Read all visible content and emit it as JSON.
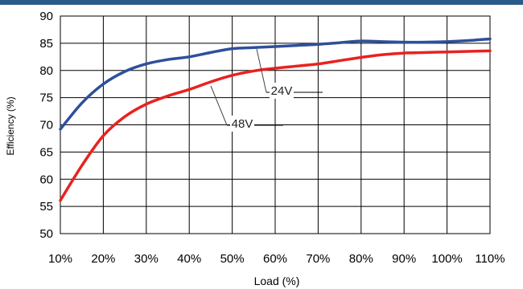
{
  "chart_data": {
    "type": "line",
    "title": "",
    "xlabel": "Load (%)",
    "ylabel": "Efficiency (%)",
    "x": [
      10,
      20,
      30,
      40,
      50,
      60,
      70,
      80,
      90,
      100,
      110
    ],
    "x_tick_labels": [
      "10%",
      "20%",
      "30%",
      "40%",
      "50%",
      "60%",
      "70%",
      "80%",
      "90%",
      "100%",
      "110%"
    ],
    "xlim": [
      10,
      110
    ],
    "ylim": [
      50,
      90
    ],
    "y_ticks": [
      50,
      55,
      60,
      65,
      70,
      75,
      80,
      85,
      90
    ],
    "grid": true,
    "series": [
      {
        "name": "24V",
        "color": "#2e4f9c",
        "points": [
          [
            10,
            69.2
          ],
          [
            15,
            74.0
          ],
          [
            20,
            77.5
          ],
          [
            25,
            79.8
          ],
          [
            30,
            81.2
          ],
          [
            35,
            82.0
          ],
          [
            40,
            82.5
          ],
          [
            45,
            83.3
          ],
          [
            50,
            84.0
          ],
          [
            55,
            84.2
          ],
          [
            60,
            84.4
          ],
          [
            65,
            84.6
          ],
          [
            70,
            84.8
          ],
          [
            75,
            85.1
          ],
          [
            80,
            85.4
          ],
          [
            85,
            85.3
          ],
          [
            90,
            85.2
          ],
          [
            95,
            85.2
          ],
          [
            100,
            85.3
          ],
          [
            105,
            85.5
          ],
          [
            110,
            85.8
          ]
        ]
      },
      {
        "name": "48V",
        "color": "#e8221f",
        "points": [
          [
            10,
            56.1
          ],
          [
            15,
            62.5
          ],
          [
            20,
            68.0
          ],
          [
            25,
            71.5
          ],
          [
            30,
            73.8
          ],
          [
            35,
            75.3
          ],
          [
            40,
            76.5
          ],
          [
            45,
            77.9
          ],
          [
            50,
            79.1
          ],
          [
            55,
            79.9
          ],
          [
            60,
            80.4
          ],
          [
            65,
            80.8
          ],
          [
            70,
            81.2
          ],
          [
            75,
            81.8
          ],
          [
            80,
            82.4
          ],
          [
            85,
            82.9
          ],
          [
            90,
            83.2
          ],
          [
            95,
            83.3
          ],
          [
            100,
            83.4
          ],
          [
            105,
            83.5
          ],
          [
            110,
            83.6
          ]
        ]
      }
    ],
    "annotations": [
      {
        "text": "24V",
        "series": "24V",
        "at_x": 53
      },
      {
        "text": "48V",
        "series": "48V",
        "at_x": 47
      }
    ]
  }
}
